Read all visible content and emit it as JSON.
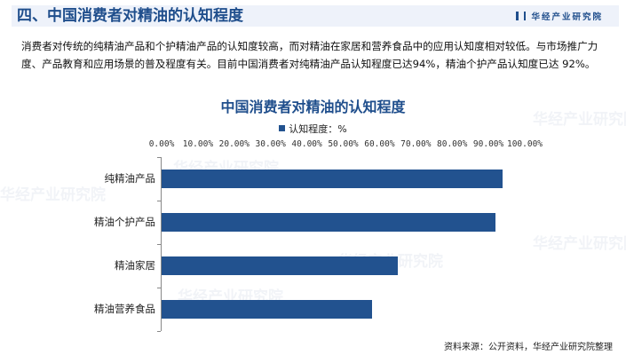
{
  "header": {
    "title": "四、中国消费者对精油的认知程度",
    "brand": "华经产业研究院"
  },
  "paragraph": "消费者对传统的纯精油产品和个护精油产品的认知度较高，而对精油在家居和营养食品中的应用认知度相对较低。与市场推广力度、产品教育和应用场景的普及程度有关。目前中国消费者对纯精油产品认知程度已达94%，精油个护产品认知度已达 92%。",
  "watermark": "华经产业研究院",
  "source": "资料来源：公开资料，华经产业研究院整理",
  "colors": {
    "bar": "#22528f",
    "title": "#1f4e8c"
  },
  "chart_data": {
    "type": "bar",
    "orientation": "horizontal",
    "title": "中国消费者对精油的认知程度",
    "legend": [
      "认知程度：%"
    ],
    "legend_position": "top",
    "x_axis_position": "top",
    "xlabel": "",
    "ylabel": "",
    "xlim": [
      0,
      100
    ],
    "tick_labels": [
      "0.00%",
      "10.00%",
      "20.00%",
      "30.00%",
      "40.00%",
      "50.00%",
      "60.00%",
      "70.00%",
      "80.00%",
      "90.00%",
      "100.00%"
    ],
    "categories": [
      "纯精油产品",
      "精油个护产品",
      "精油家居",
      "精油营养食品"
    ],
    "series": [
      {
        "name": "认知程度：%",
        "values": [
          94,
          92,
          65,
          58
        ]
      }
    ],
    "grid": false
  }
}
